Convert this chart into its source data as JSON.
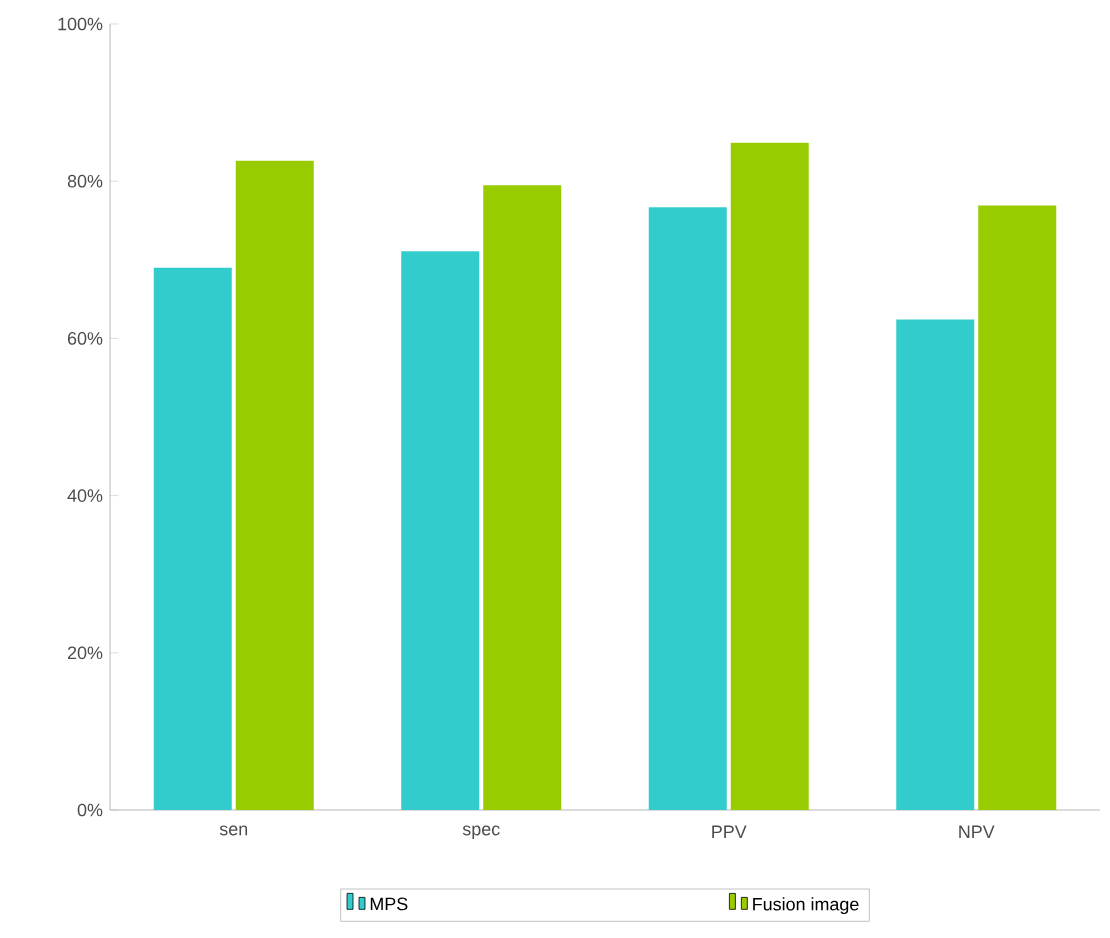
{
  "chart_data": {
    "type": "bar",
    "categories": [
      "sen",
      "spec",
      "PPV",
      "NPV"
    ],
    "series": [
      {
        "name": "MPS",
        "color": "#33cccc",
        "values": [
          69.0,
          71.1,
          76.7,
          62.4
        ]
      },
      {
        "name": "Fusion image",
        "color": "#99cc00",
        "values": [
          82.6,
          79.5,
          84.9,
          76.9
        ]
      }
    ],
    "ylim": [
      0,
      100
    ],
    "yticks": [
      {
        "value": 0,
        "label": "0%"
      },
      {
        "value": 20,
        "label": "20%"
      },
      {
        "value": 40,
        "label": "40%"
      },
      {
        "value": 60,
        "label": "60%"
      },
      {
        "value": 80,
        "label": "80%"
      },
      {
        "value": 100,
        "label": "100%"
      }
    ],
    "grid": false,
    "legend": "bottom"
  }
}
